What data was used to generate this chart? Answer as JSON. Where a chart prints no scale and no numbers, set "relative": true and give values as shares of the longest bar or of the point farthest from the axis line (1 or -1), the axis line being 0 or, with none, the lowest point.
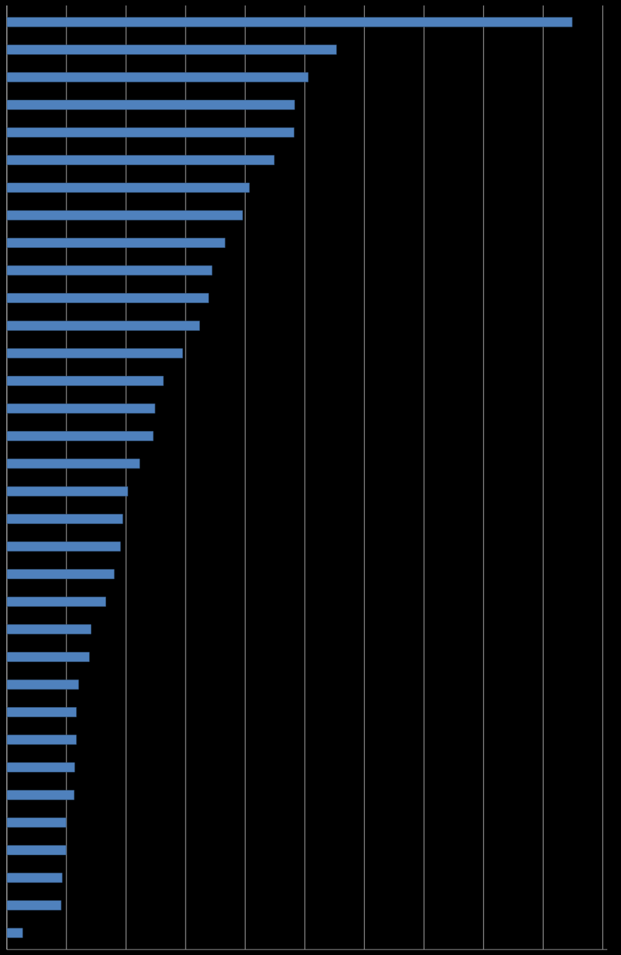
{
  "chart_data": {
    "type": "bar",
    "orientation": "horizontal",
    "relative": true,
    "grid": "x",
    "color": "#4f81bd",
    "categories": [
      null,
      null,
      null,
      null,
      null,
      null,
      null,
      null,
      null,
      null,
      null,
      null,
      null,
      null,
      null,
      null,
      null,
      null,
      null,
      null,
      null,
      null,
      null,
      null,
      null,
      null,
      null,
      null,
      null,
      null,
      null,
      null,
      null,
      null
    ],
    "values": [
      1,
      0.583,
      0.533,
      0.509,
      0.508,
      0.473,
      0.429,
      0.417,
      0.386,
      0.363,
      0.357,
      0.341,
      0.311,
      0.277,
      0.262,
      0.259,
      0.235,
      0.214,
      0.205,
      0.201,
      0.19,
      0.175,
      0.149,
      0.146,
      0.127,
      0.123,
      0.123,
      0.12,
      0.119,
      0.105,
      0.105,
      0.098,
      0.096,
      0.028
    ]
  }
}
